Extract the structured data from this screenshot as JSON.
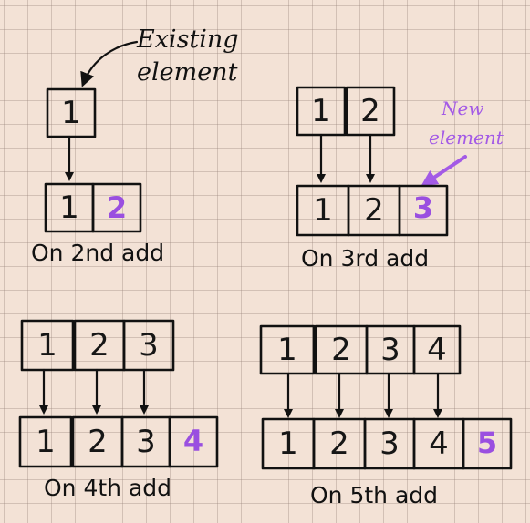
{
  "annotations": {
    "existing_line1": "Existing",
    "existing_line2": "element",
    "new_line1": "New",
    "new_line2": "element"
  },
  "colors": {
    "ink": "#111111",
    "new_value": "#9a4fe0",
    "paper": "#f3e2d6"
  },
  "panels": [
    {
      "caption": "On 2nd add",
      "before": [
        "1"
      ],
      "after": [
        "1",
        "2"
      ]
    },
    {
      "caption": "On 3rd add",
      "before": [
        "1",
        "2"
      ],
      "after": [
        "1",
        "2",
        "3"
      ]
    },
    {
      "caption": "On 4th add",
      "before": [
        "1",
        "2",
        "3"
      ],
      "after": [
        "1",
        "2",
        "3",
        "4"
      ]
    },
    {
      "caption": "On 5th add",
      "before": [
        "1",
        "2",
        "3",
        "4"
      ],
      "after": [
        "1",
        "2",
        "3",
        "4",
        "5"
      ]
    }
  ]
}
